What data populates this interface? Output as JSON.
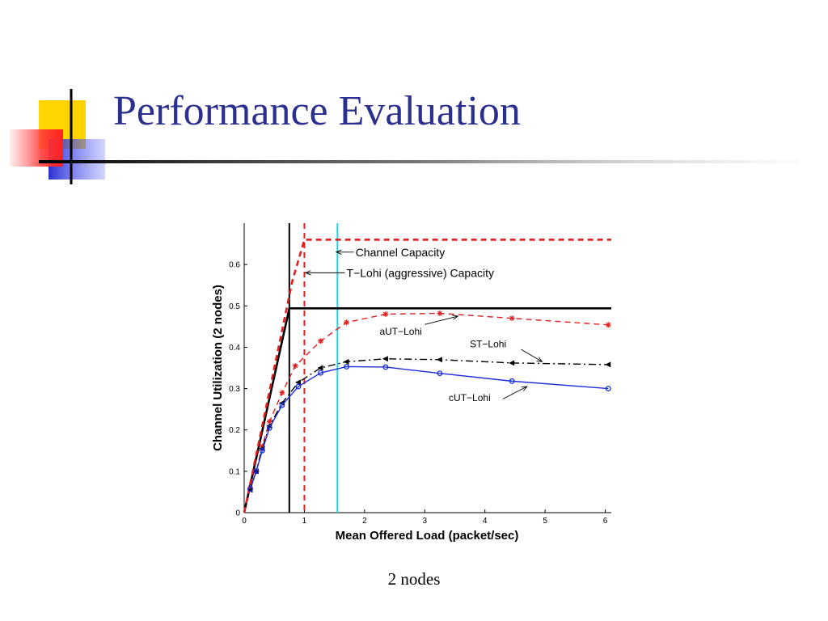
{
  "slide": {
    "title": "Performance Evaluation",
    "caption": "2 nodes",
    "accent_color": "#2b2f8f"
  },
  "chart_data": {
    "type": "line",
    "title": "",
    "xlabel": "Mean Offered Load (packet/sec)",
    "ylabel": "Channel Utilization (2 nodes)",
    "xlim": [
      0,
      6.1
    ],
    "ylim": [
      0,
      0.7
    ],
    "xticks": [
      0,
      1,
      2,
      3,
      4,
      5,
      6
    ],
    "yticks": [
      0,
      0.1,
      0.2,
      0.3,
      0.4,
      0.5,
      0.6
    ],
    "grid": false,
    "series": [
      {
        "name": "Channel Capacity",
        "color": "#000000",
        "style": "solid",
        "x": [
          0,
          0.75,
          6.1
        ],
        "y": [
          0,
          0.494,
          0.494
        ]
      },
      {
        "name": "T−Lohi (aggressive) Capacity",
        "color": "#e02020",
        "style": "dashed",
        "x": [
          0,
          0.8,
          1.0,
          6.1
        ],
        "y": [
          0,
          0.56,
          0.66,
          0.66
        ]
      },
      {
        "name": "aUT−Lohi",
        "color": "#e02020",
        "style": "dashed",
        "marker": "star",
        "x": [
          0.1,
          0.2,
          0.3,
          0.42,
          0.63,
          0.85,
          1.27,
          1.7,
          2.35,
          3.25,
          4.45,
          6.05
        ],
        "y": [
          0.06,
          0.1,
          0.16,
          0.22,
          0.29,
          0.355,
          0.415,
          0.46,
          0.48,
          0.482,
          0.47,
          0.454
        ]
      },
      {
        "name": "ST−Lohi",
        "color": "#000000",
        "style": "dashdot",
        "marker": "triangle",
        "x": [
          0.1,
          0.2,
          0.3,
          0.42,
          0.63,
          0.9,
          1.27,
          1.7,
          2.35,
          3.25,
          4.45,
          6.05
        ],
        "y": [
          0.055,
          0.1,
          0.155,
          0.21,
          0.265,
          0.315,
          0.35,
          0.365,
          0.372,
          0.37,
          0.362,
          0.358
        ]
      },
      {
        "name": "cUT−Lohi",
        "color": "#1b2fd9",
        "style": "solid",
        "marker": "circle",
        "x": [
          0.1,
          0.2,
          0.3,
          0.42,
          0.63,
          0.9,
          1.27,
          1.7,
          2.35,
          3.25,
          4.45,
          6.05
        ],
        "y": [
          0.057,
          0.1,
          0.15,
          0.205,
          0.26,
          0.305,
          0.338,
          0.353,
          0.352,
          0.337,
          0.318,
          0.3
        ]
      }
    ],
    "vertical_lines": [
      {
        "x": 0.75,
        "color": "#000000",
        "style": "solid"
      },
      {
        "x": 1.0,
        "color": "#e02020",
        "style": "dashed"
      },
      {
        "x": 1.55,
        "color": "#19d6e6",
        "style": "solid"
      }
    ],
    "annotations": [
      {
        "text": "Channel Capacity",
        "target_series": "Channel Capacity"
      },
      {
        "text": "T−Lohi (aggressive) Capacity",
        "target_series": "T−Lohi (aggressive) Capacity"
      },
      {
        "text": "aUT−Lohi",
        "target_series": "aUT−Lohi"
      },
      {
        "text": "ST−Lohi",
        "target_series": "ST−Lohi"
      },
      {
        "text": "cUT−Lohi",
        "target_series": "cUT−Lohi"
      }
    ]
  }
}
